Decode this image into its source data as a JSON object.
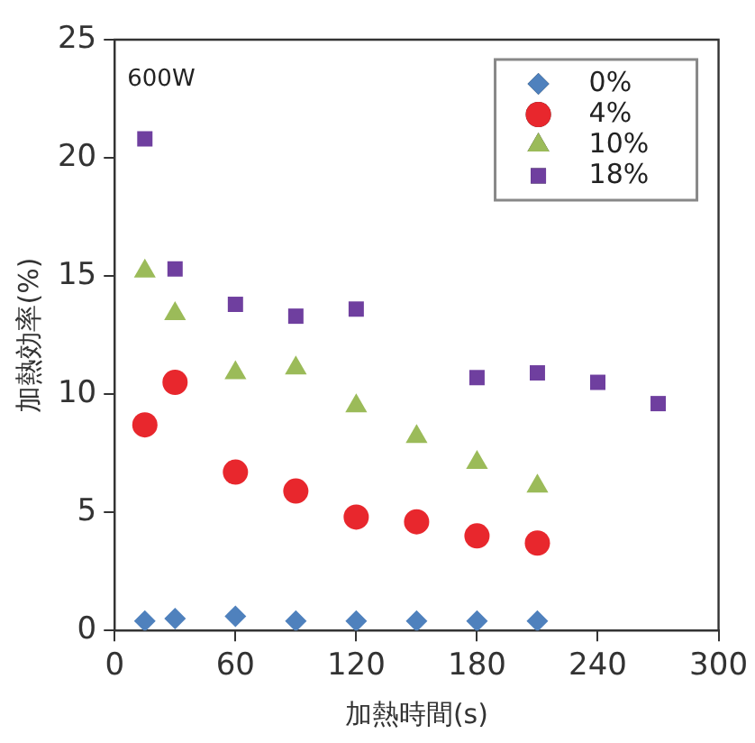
{
  "chart_data": {
    "type": "scatter",
    "xlabel": "加熱時間(s)",
    "ylabel": "加熱効率(%)",
    "annotations": [
      "600W"
    ],
    "xlim": [
      0,
      300
    ],
    "xticks": [
      0,
      60,
      120,
      180,
      240,
      300
    ],
    "ylim": [
      0,
      25
    ],
    "yticks": [
      0,
      5,
      10,
      15,
      20,
      25
    ],
    "grid": false,
    "legend": "top right",
    "series": [
      {
        "name": "0%",
        "color": "#4f81bd",
        "marker": "diamond",
        "x": [
          15,
          30,
          60,
          90,
          120,
          150,
          180,
          210
        ],
        "values": [
          0.4,
          0.5,
          0.6,
          0.4,
          0.4,
          0.4,
          0.4,
          0.4
        ]
      },
      {
        "name": "4%",
        "color": "#e8272d",
        "marker": "circle",
        "x": [
          15,
          30,
          60,
          90,
          120,
          150,
          180,
          210
        ],
        "values": [
          8.7,
          10.5,
          6.7,
          5.9,
          4.8,
          4.6,
          4.0,
          3.7
        ]
      },
      {
        "name": "10%",
        "color": "#9bbb59",
        "marker": "triangle",
        "x": [
          15,
          30,
          60,
          90,
          120,
          150,
          180,
          210
        ],
        "values": [
          15.2,
          13.4,
          10.9,
          11.1,
          9.5,
          8.2,
          7.1,
          6.1
        ]
      },
      {
        "name": "18%",
        "color": "#6f3f9f",
        "marker": "square",
        "x": [
          15,
          30,
          60,
          90,
          120,
          180,
          210,
          240,
          270
        ],
        "values": [
          20.8,
          15.3,
          13.8,
          13.3,
          13.6,
          10.7,
          10.9,
          10.5,
          9.6
        ]
      }
    ]
  }
}
